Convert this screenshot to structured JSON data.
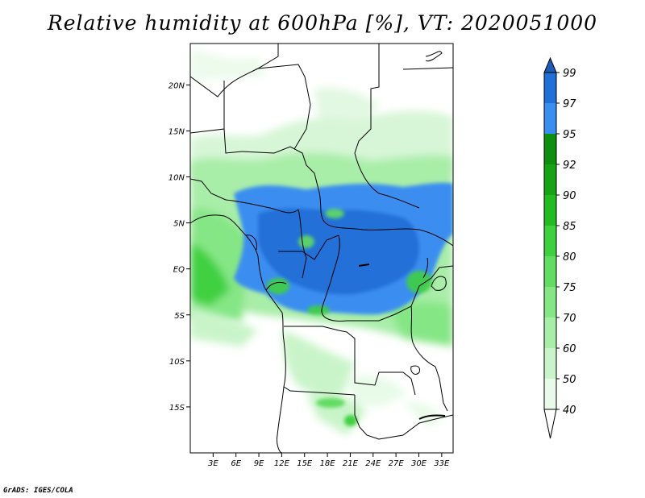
{
  "title": "Relative humidity at 600hPa [%], VT: 2020051000",
  "credit": "GrADS: IGES/COLA",
  "map": {
    "lat_labels": [
      {
        "label": "20N",
        "lat": 20
      },
      {
        "label": "15N",
        "lat": 15
      },
      {
        "label": "10N",
        "lat": 10
      },
      {
        "label": "5N",
        "lat": 5
      },
      {
        "label": "EQ",
        "lat": 0
      },
      {
        "label": "5S",
        "lat": -5
      },
      {
        "label": "10S",
        "lat": -10
      },
      {
        "label": "15S",
        "lat": -15
      }
    ],
    "lon_labels": [
      {
        "label": "3E",
        "lon": 3
      },
      {
        "label": "6E",
        "lon": 6
      },
      {
        "label": "9E",
        "lon": 9
      },
      {
        "label": "12E",
        "lon": 12
      },
      {
        "label": "15E",
        "lon": 15
      },
      {
        "label": "18E",
        "lon": 18
      },
      {
        "label": "21E",
        "lon": 21
      },
      {
        "label": "24E",
        "lon": 24
      },
      {
        "label": "27E",
        "lon": 27
      },
      {
        "label": "30E",
        "lon": 30
      },
      {
        "label": "33E",
        "lon": 33
      }
    ],
    "lon_range": [
      0,
      34.5
    ],
    "lat_range": [
      -20,
      24.5
    ]
  },
  "colorbar": {
    "levels": [
      "40",
      "50",
      "60",
      "70",
      "75",
      "80",
      "85",
      "90",
      "92",
      "95",
      "97",
      "99"
    ],
    "colors": [
      "#ffffff",
      "#e8fbe8",
      "#c9f4c9",
      "#a8eda8",
      "#85e685",
      "#62dc62",
      "#3fd03f",
      "#22bb22",
      "#16a316",
      "#0f8f0f",
      "#3a8ef0",
      "#2070d8",
      "#1c5cb8"
    ],
    "orientation": "vertical"
  },
  "legend_colors": {
    "land_bg": "#ffffff",
    "border": "#000000"
  }
}
